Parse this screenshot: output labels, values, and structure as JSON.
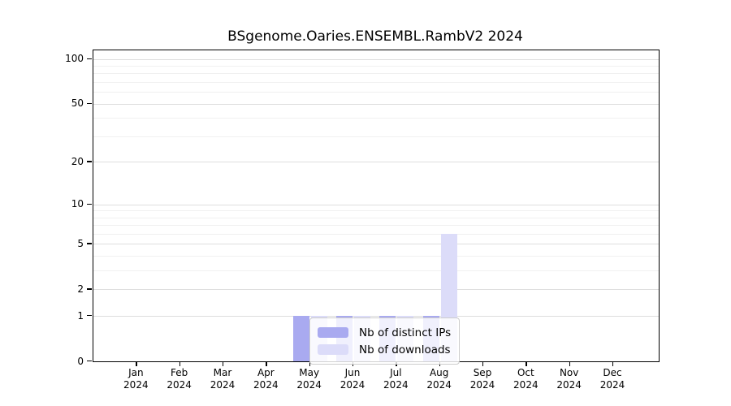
{
  "title": "BSgenome.Oaries.ENSEMBL.RambV2 2024",
  "chart_data": {
    "type": "bar",
    "title": "BSgenome.Oaries.ENSEMBL.RambV2 2024",
    "categories": [
      "Jan",
      "Feb",
      "Mar",
      "Apr",
      "May",
      "Jun",
      "Jul",
      "Aug",
      "Sep",
      "Oct",
      "Nov",
      "Dec"
    ],
    "x_sub_label": "2024",
    "series": [
      {
        "name": "Nb of distinct IPs",
        "color": "#a9aaf0",
        "values": [
          0,
          0,
          0,
          0,
          1,
          1,
          1,
          1,
          0,
          0,
          0,
          0
        ]
      },
      {
        "name": "Nb of downloads",
        "color": "#dcdcf9",
        "values": [
          0,
          0,
          0,
          0,
          1,
          1,
          1,
          6,
          0,
          0,
          0,
          0
        ]
      }
    ],
    "y_axis": {
      "ticks": [
        0,
        1,
        2,
        5,
        10,
        20,
        50,
        100
      ],
      "minor_gridlines": [
        3,
        4,
        6,
        7,
        8,
        9,
        30,
        40,
        60,
        70,
        80,
        90
      ],
      "scale": "log10(1+x)",
      "range": [
        0,
        100
      ]
    },
    "legend": {
      "position": "inside-bottom-center",
      "entries": [
        "Nb of distinct IPs",
        "Nb of downloads"
      ]
    },
    "grid": "on"
  },
  "colors": {
    "distinct_ips": "#a9aaf0",
    "downloads": "#dcdcf9",
    "major_grid": "#dedede",
    "minor_grid": "#f0f0f0",
    "spine": "#000000",
    "legend_border": "#cccccc",
    "background": "#ffffff"
  }
}
